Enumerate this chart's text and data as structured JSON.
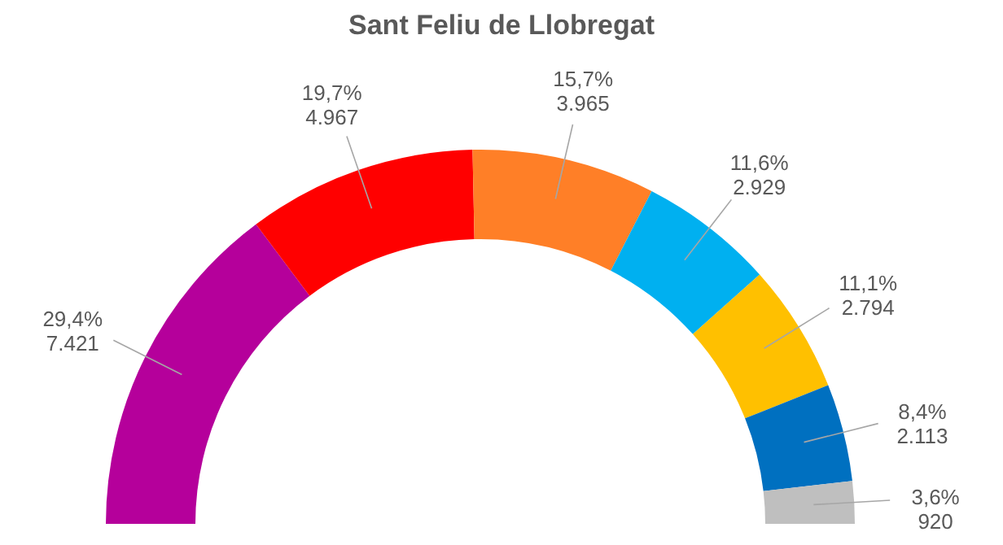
{
  "chart_data": {
    "type": "donut",
    "title": "Sant Feliu de Llobregat",
    "categories": [
      null,
      null,
      null,
      null,
      null,
      null,
      null
    ],
    "values": [
      7421,
      4967,
      3965,
      2929,
      2794,
      2113,
      920
    ],
    "colors": [
      "#b5009b",
      "#ff0000",
      "#ff7f27",
      "#00b0f0",
      "#ffc000",
      "#0070c0",
      "#bfbfbf"
    ],
    "value_labels": [
      "29,4%\n7.421",
      "19,7%\n4.967",
      "15,7%\n3.965",
      "11,6%\n2.929",
      "11,1%\n2.794",
      "8,4%\n2.113",
      "3,6%\n920"
    ]
  }
}
